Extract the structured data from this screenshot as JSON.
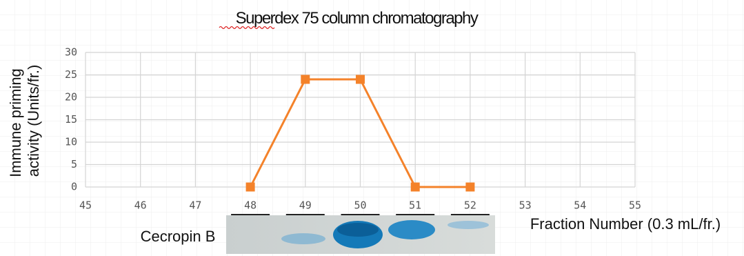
{
  "chart_data": {
    "type": "line",
    "title": "Superdex 75 column chromatography",
    "x_label": "Fraction Number (0.3 mL/fr.)",
    "y_label": [
      "Immune priming",
      "activity (Units/fr.)"
    ],
    "gel_label": "Cecropin B",
    "x": [
      48,
      49,
      50,
      51,
      52
    ],
    "series": [
      {
        "color": "#f4822a",
        "values": [
          0,
          24,
          24,
          0,
          0
        ]
      }
    ],
    "xlim": [
      45,
      55
    ],
    "xticks": [
      45,
      46,
      47,
      48,
      49,
      50,
      51,
      52,
      53,
      54,
      55
    ],
    "ylim": [
      0,
      30
    ],
    "yticks": [
      0,
      5,
      10,
      15,
      20,
      25,
      30
    ],
    "grid": true
  }
}
